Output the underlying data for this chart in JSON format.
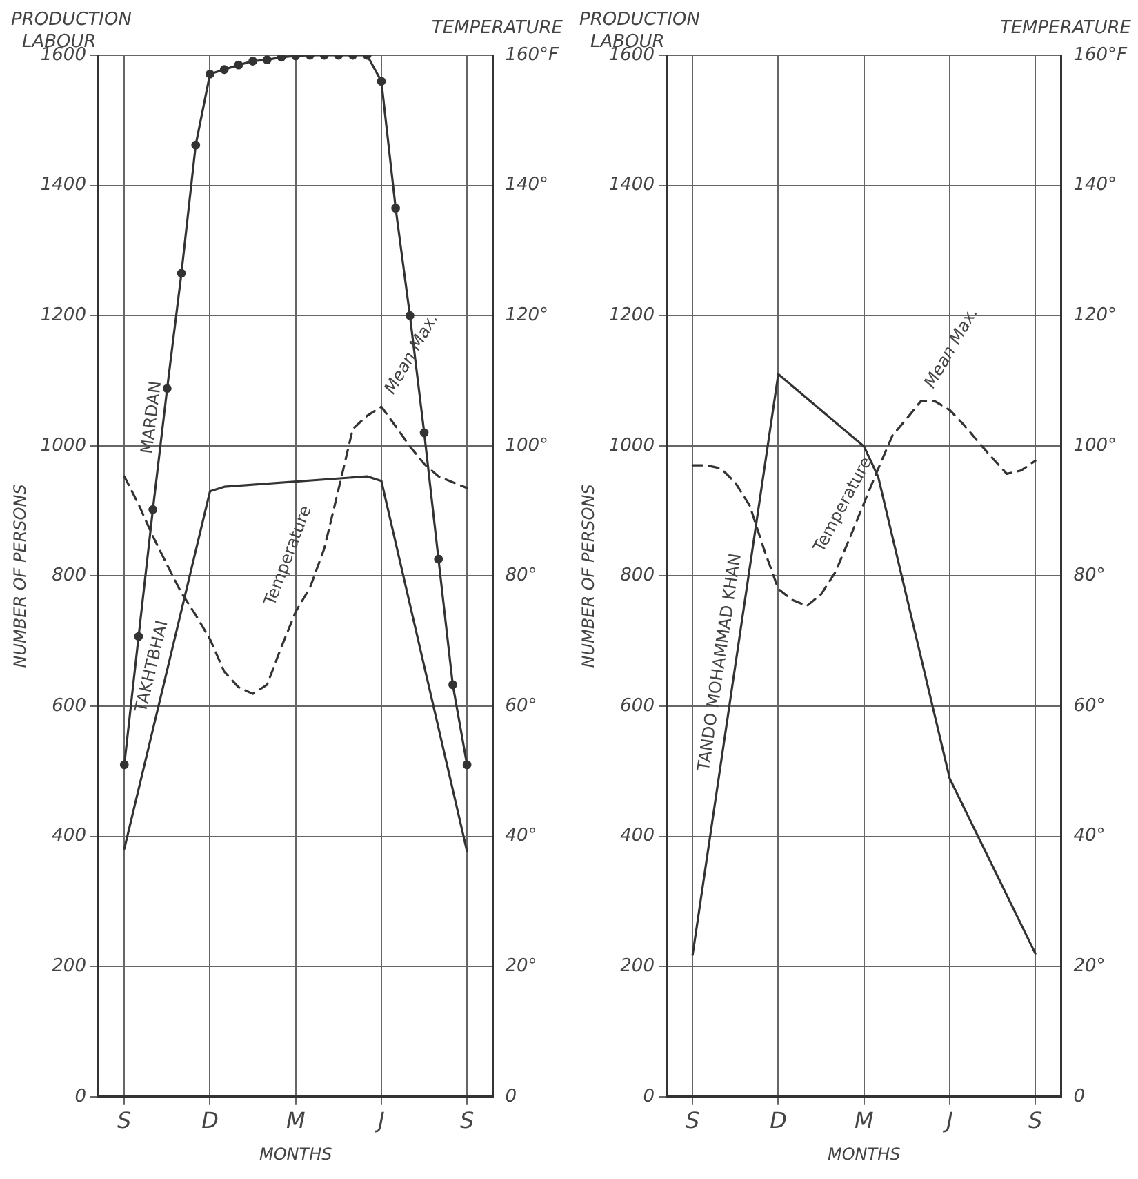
{
  "chart_data": [
    {
      "type": "line",
      "title": "PRODUCTION LABOUR",
      "xlabel": "MONTHS",
      "ylabel": "NUMBER OF PERSONS",
      "y2label": "TEMPERATURE",
      "annotations": [
        "Mean Max."
      ],
      "categories": [
        "S",
        null,
        null,
        null,
        null,
        null,
        "D",
        null,
        null,
        null,
        null,
        null,
        "M",
        null,
        null,
        null,
        null,
        null,
        "J",
        null,
        null,
        null,
        null,
        null,
        "S"
      ],
      "ylim": [
        0,
        1600
      ],
      "yticks": [
        0,
        200,
        400,
        600,
        800,
        1000,
        1200,
        1400,
        1600
      ],
      "y2lim": [
        0,
        160
      ],
      "y2ticks": [
        0,
        {
          "value": 20,
          "label": "20°"
        },
        {
          "value": 40,
          "label": "40°"
        },
        {
          "value": 60,
          "label": "60°"
        },
        {
          "value": 80,
          "label": "80°"
        },
        {
          "value": 100,
          "label": "100°"
        },
        {
          "value": 120,
          "label": "120°"
        },
        {
          "value": 140,
          "label": "140°"
        },
        {
          "value": 160,
          "label": "160°F"
        }
      ],
      "grid": true,
      "series": [
        {
          "name": "MARDAN",
          "color": "#333333",
          "marker": "circle",
          "line_style": "solid",
          "values": [
            510,
            707,
            902,
            1088,
            1265,
            1462,
            1571,
            1578,
            1585,
            1591,
            1593,
            1597,
            1599,
            1600,
            1600,
            1600,
            1600,
            1600,
            1560,
            1365,
            1200,
            1020,
            826,
            633,
            510
          ]
        },
        {
          "name": "TAKHTBHAI",
          "color": "#333333",
          "line_style": "solid",
          "values": [
            381,
            null,
            null,
            null,
            null,
            null,
            930,
            937,
            null,
            null,
            null,
            null,
            null,
            null,
            null,
            null,
            null,
            953,
            946,
            null,
            null,
            null,
            null,
            null,
            377
          ]
        },
        {
          "name": "Temperature",
          "color": "#333333",
          "line_style": "dashed",
          "axis": "y2",
          "values": [
            95.3,
            91.0,
            86.1,
            81.7,
            77.4,
            74.0,
            70.3,
            65.3,
            62.9,
            61.9,
            63.3,
            69.1,
            74.5,
            78.2,
            84.2,
            93.3,
            102.6,
            104.6,
            106.0,
            103.0,
            99.9,
            97.2,
            95.3,
            94.4,
            93.5
          ]
        }
      ]
    },
    {
      "type": "line",
      "title": "PRODUCTION LABOUR",
      "xlabel": "MONTHS",
      "ylabel": "NUMBER OF PERSONS",
      "y2label": "TEMPERATURE",
      "annotations": [
        "Mean Max."
      ],
      "categories": [
        "S",
        null,
        null,
        null,
        null,
        null,
        "D",
        null,
        null,
        null,
        null,
        null,
        "M",
        null,
        null,
        null,
        null,
        null,
        "J",
        null,
        null,
        null,
        null,
        null,
        "S"
      ],
      "ylim": [
        0,
        1600
      ],
      "yticks": [
        0,
        200,
        400,
        600,
        800,
        1000,
        1200,
        1400,
        1600
      ],
      "y2lim": [
        0,
        160
      ],
      "y2ticks": [
        0,
        {
          "value": 20,
          "label": "20°"
        },
        {
          "value": 40,
          "label": "40°"
        },
        {
          "value": 60,
          "label": "60°"
        },
        {
          "value": 80,
          "label": "80°"
        },
        {
          "value": 100,
          "label": "100°"
        },
        {
          "value": 120,
          "label": "120°"
        },
        {
          "value": 140,
          "label": "140°"
        },
        {
          "value": 160,
          "label": "160°F"
        }
      ],
      "grid": true,
      "series": [
        {
          "name": "TANDO MOHAMMAD KHAN",
          "color": "#333333",
          "line_style": "solid",
          "values": [
            218,
            null,
            null,
            null,
            null,
            null,
            1110,
            null,
            null,
            null,
            null,
            null,
            999,
            952,
            null,
            null,
            null,
            null,
            489,
            null,
            null,
            null,
            null,
            null,
            220
          ]
        },
        {
          "name": "Temperature",
          "color": "#333333",
          "line_style": "dashed",
          "axis": "y2",
          "values": [
            97.0,
            97.0,
            96.5,
            94.3,
            90.8,
            84.1,
            78.0,
            76.3,
            75.4,
            77.2,
            80.6,
            85.8,
            91.2,
            96.5,
            101.6,
            104.2,
            106.9,
            106.8,
            105.5,
            103.2,
            100.6,
            98.1,
            95.7,
            96.2,
            97.7
          ]
        }
      ]
    }
  ]
}
